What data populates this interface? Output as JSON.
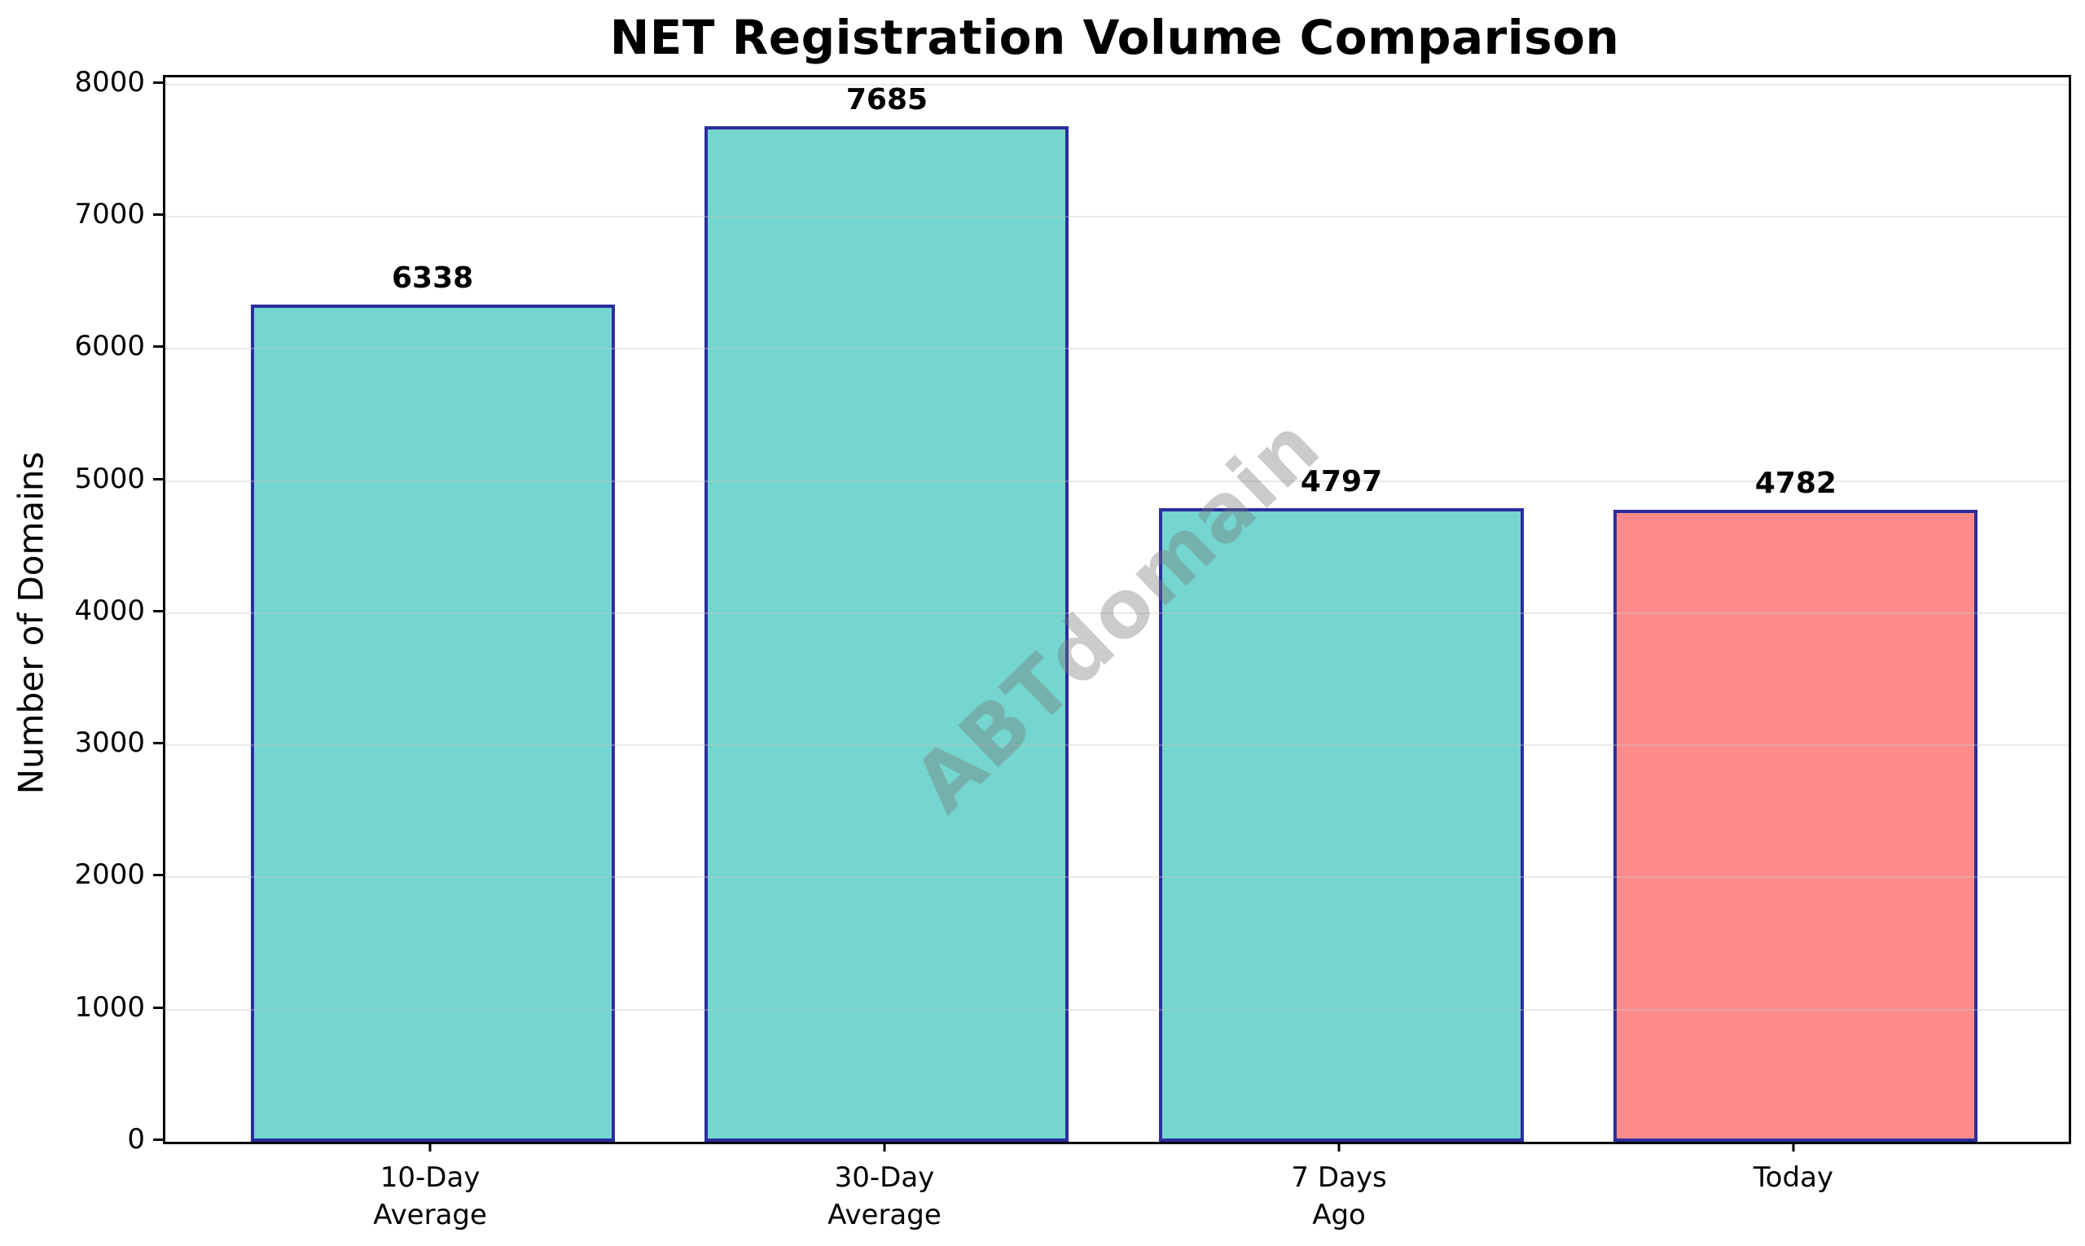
{
  "chart_data": {
    "type": "bar",
    "title": "NET Registration Volume Comparison",
    "ylabel": "Number of Domains",
    "xlabel": "",
    "categories": [
      "10-Day\nAverage",
      "30-Day\nAverage",
      "7 Days\nAgo",
      "Today"
    ],
    "values": [
      6338,
      7685,
      4797,
      4782
    ],
    "value_labels": [
      "6338",
      "7685",
      "4797",
      "4782"
    ],
    "yticks": [
      0,
      1000,
      2000,
      3000,
      4000,
      5000,
      6000,
      7000,
      8000
    ],
    "ylim": [
      0,
      8055
    ],
    "grid": true,
    "legend": false,
    "watermark": "ABTdomain",
    "colors": {
      "bar_fill_default": "#74d6ce",
      "bar_fill_highlight": "#fd8b8b",
      "bar_fills": [
        "#74d6ce",
        "#74d6ce",
        "#74d6ce",
        "#fd8b8b"
      ],
      "bar_edge": "#2b2d9e",
      "grid_color": "#e6e6e6",
      "text_color": "#000000",
      "watermark_color": "#bdbdbd"
    }
  }
}
